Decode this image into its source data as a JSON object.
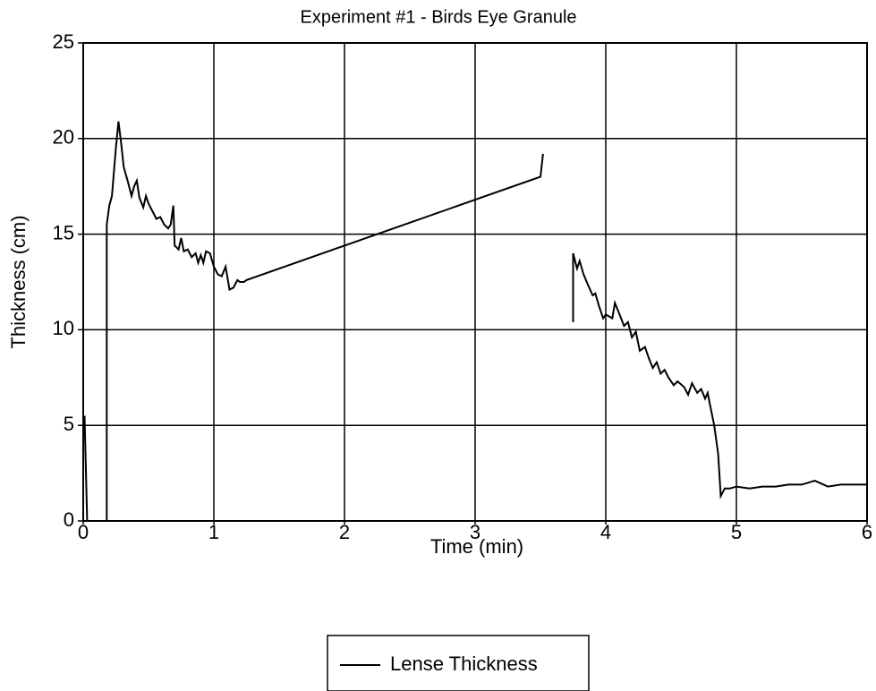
{
  "chart_data": {
    "type": "line",
    "title": "Experiment #1 - Birds Eye Granule",
    "x_label": "Time (min)",
    "y_label": "Thickness (cm)",
    "xlim": [
      0,
      6
    ],
    "ylim": [
      0,
      25
    ],
    "xticks": [
      0,
      1,
      2,
      3,
      4,
      5,
      6
    ],
    "yticks": [
      0,
      5,
      10,
      15,
      20,
      25
    ],
    "grid": true,
    "legend": "bottom",
    "series": [
      {
        "name": "Lense Thickness",
        "color": "#000000",
        "x": [
          0.01,
          0.03,
          0.18,
          0.18,
          0.2,
          0.22,
          0.25,
          0.27,
          0.29,
          0.31,
          0.34,
          0.37,
          0.39,
          0.41,
          0.43,
          0.46,
          0.48,
          0.5,
          0.53,
          0.56,
          0.59,
          0.62,
          0.65,
          0.67,
          0.69,
          0.7,
          0.73,
          0.75,
          0.77,
          0.8,
          0.83,
          0.86,
          0.88,
          0.9,
          0.92,
          0.94,
          0.97,
          1.0,
          1.03,
          1.06,
          1.09,
          1.12,
          1.15,
          1.18,
          1.2,
          1.23,
          1.25,
          3.5,
          3.52,
          null,
          3.75,
          3.75,
          3.78,
          3.8,
          3.83,
          3.86,
          3.9,
          3.92,
          3.95,
          3.98,
          4.0,
          4.05,
          4.07,
          4.1,
          4.14,
          4.17,
          4.2,
          4.23,
          4.26,
          4.3,
          4.33,
          4.36,
          4.39,
          4.42,
          4.45,
          4.48,
          4.52,
          4.55,
          4.6,
          4.63,
          4.66,
          4.7,
          4.73,
          4.76,
          4.78,
          4.8,
          4.83,
          4.86,
          4.88,
          4.91,
          4.95,
          5.0,
          5.1,
          5.2,
          5.3,
          5.4,
          5.5,
          5.6,
          5.7,
          5.8,
          6.0
        ],
        "values": [
          5.5,
          0,
          0,
          15.5,
          16.5,
          17,
          19.5,
          20.9,
          19.8,
          18.5,
          17.8,
          17,
          17.5,
          17.8,
          16.9,
          16.4,
          17,
          16.6,
          16.2,
          15.8,
          15.9,
          15.5,
          15.3,
          15.5,
          16.5,
          14.4,
          14.2,
          14.8,
          14.1,
          14.2,
          13.8,
          14,
          13.5,
          13.9,
          13.5,
          14.1,
          14,
          13.3,
          12.9,
          12.8,
          13.3,
          12.1,
          12.2,
          12.6,
          12.5,
          12.5,
          12.6,
          18,
          19.2,
          null,
          10.4,
          14,
          13.2,
          13.6,
          12.9,
          12.4,
          11.8,
          11.9,
          11.2,
          10.6,
          10.8,
          10.6,
          11.4,
          10.9,
          10.2,
          10.4,
          9.6,
          9.9,
          8.9,
          9.1,
          8.5,
          8,
          8.3,
          7.7,
          7.9,
          7.5,
          7.1,
          7.3,
          7,
          6.6,
          7.2,
          6.7,
          6.9,
          6.4,
          6.7,
          6,
          5,
          3.5,
          1.3,
          1.7,
          1.7,
          1.8,
          1.7,
          1.8,
          1.8,
          1.9,
          1.9,
          2.1,
          1.8,
          1.9,
          1.9
        ]
      }
    ]
  }
}
